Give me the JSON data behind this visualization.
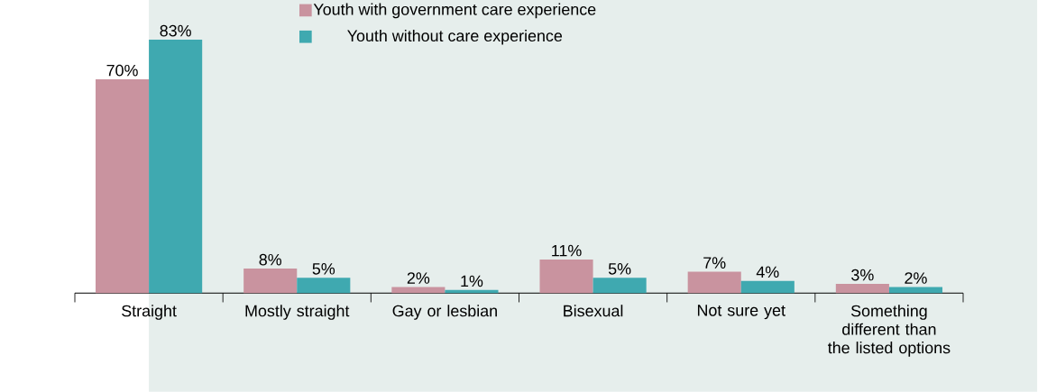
{
  "chart_data": {
    "type": "bar",
    "categories": [
      "Straight",
      "Mostly straight",
      "Gay or lesbian",
      "Bisexual",
      "Not sure yet",
      "Something different than the listed options"
    ],
    "series": [
      {
        "name": "Youth with government care experience",
        "color": "#c9939f",
        "values": [
          70,
          8,
          2,
          11,
          7,
          3
        ],
        "value_labels": [
          "70%",
          "8%",
          "2%",
          "11%",
          "7%",
          "3%"
        ]
      },
      {
        "name": "Youth without care experience",
        "color": "#3fa9b0",
        "values": [
          83,
          5,
          1,
          5,
          4,
          2
        ],
        "value_labels": [
          "83%",
          "5%",
          "1%",
          "5%",
          "4%",
          "2%"
        ]
      }
    ],
    "ylim": [
      0,
      96
    ],
    "legend": "top"
  }
}
